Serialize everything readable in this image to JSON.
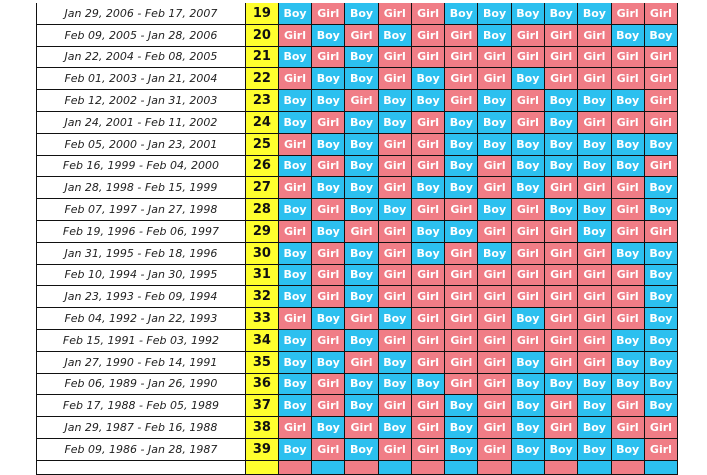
{
  "colors": {
    "boy": "#2cc0ef",
    "girl": "#f07d86",
    "age": "#ffff2e"
  },
  "rows": [
    {
      "date": "Jan 29, 2006 - Feb 17, 2007",
      "age": "19",
      "g": [
        "Boy",
        "Girl",
        "Boy",
        "Girl",
        "Girl",
        "Boy",
        "Boy",
        "Boy",
        "Boy",
        "Boy",
        "Girl",
        "Girl"
      ]
    },
    {
      "date": "Feb 09, 2005 - Jan 28, 2006",
      "age": "20",
      "g": [
        "Girl",
        "Boy",
        "Girl",
        "Boy",
        "Girl",
        "Girl",
        "Boy",
        "Girl",
        "Girl",
        "Girl",
        "Boy",
        "Boy"
      ]
    },
    {
      "date": "Jan 22, 2004 - Feb 08, 2005",
      "age": "21",
      "g": [
        "Boy",
        "Girl",
        "Boy",
        "Girl",
        "Girl",
        "Girl",
        "Girl",
        "Girl",
        "Girl",
        "Girl",
        "Girl",
        "Girl"
      ]
    },
    {
      "date": "Feb 01, 2003 - Jan 21, 2004",
      "age": "22",
      "g": [
        "Girl",
        "Boy",
        "Boy",
        "Girl",
        "Boy",
        "Girl",
        "Girl",
        "Boy",
        "Girl",
        "Girl",
        "Girl",
        "Girl"
      ]
    },
    {
      "date": "Feb 12, 2002 - Jan 31, 2003",
      "age": "23",
      "g": [
        "Boy",
        "Boy",
        "Girl",
        "Boy",
        "Boy",
        "Girl",
        "Boy",
        "Girl",
        "Boy",
        "Boy",
        "Boy",
        "Girl"
      ]
    },
    {
      "date": "Jan 24, 2001 - Feb 11, 2002",
      "age": "24",
      "g": [
        "Boy",
        "Girl",
        "Boy",
        "Boy",
        "Girl",
        "Boy",
        "Boy",
        "Girl",
        "Boy",
        "Girl",
        "Girl",
        "Girl"
      ]
    },
    {
      "date": "Feb 05, 2000 - Jan 23, 2001",
      "age": "25",
      "g": [
        "Girl",
        "Boy",
        "Boy",
        "Girl",
        "Girl",
        "Boy",
        "Boy",
        "Boy",
        "Boy",
        "Boy",
        "Boy",
        "Boy"
      ]
    },
    {
      "date": "Feb 16, 1999 - Feb 04, 2000",
      "age": "26",
      "g": [
        "Boy",
        "Girl",
        "Boy",
        "Girl",
        "Girl",
        "Boy",
        "Girl",
        "Boy",
        "Boy",
        "Boy",
        "Boy",
        "Girl"
      ]
    },
    {
      "date": "Jan 28, 1998 - Feb 15, 1999",
      "age": "27",
      "g": [
        "Girl",
        "Boy",
        "Boy",
        "Girl",
        "Boy",
        "Boy",
        "Girl",
        "Boy",
        "Girl",
        "Girl",
        "Girl",
        "Boy"
      ]
    },
    {
      "date": "Feb 07, 1997 - Jan 27, 1998",
      "age": "28",
      "g": [
        "Boy",
        "Girl",
        "Boy",
        "Boy",
        "Girl",
        "Girl",
        "Boy",
        "Girl",
        "Boy",
        "Boy",
        "Girl",
        "Boy"
      ]
    },
    {
      "date": "Feb 19, 1996 - Feb 06, 1997",
      "age": "29",
      "g": [
        "Girl",
        "Boy",
        "Girl",
        "Girl",
        "Boy",
        "Boy",
        "Girl",
        "Girl",
        "Girl",
        "Boy",
        "Girl",
        "Girl"
      ]
    },
    {
      "date": "Jan 31, 1995 - Feb 18, 1996",
      "age": "30",
      "g": [
        "Boy",
        "Girl",
        "Boy",
        "Girl",
        "Boy",
        "Girl",
        "Boy",
        "Girl",
        "Girl",
        "Girl",
        "Boy",
        "Boy"
      ]
    },
    {
      "date": "Feb 10, 1994 - Jan 30, 1995",
      "age": "31",
      "g": [
        "Boy",
        "Girl",
        "Boy",
        "Girl",
        "Girl",
        "Girl",
        "Girl",
        "Girl",
        "Girl",
        "Girl",
        "Girl",
        "Boy"
      ]
    },
    {
      "date": "Jan 23, 1993 - Feb 09, 1994",
      "age": "32",
      "g": [
        "Boy",
        "Girl",
        "Boy",
        "Girl",
        "Girl",
        "Girl",
        "Girl",
        "Girl",
        "Girl",
        "Girl",
        "Girl",
        "Boy"
      ]
    },
    {
      "date": "Feb 04, 1992 - Jan 22, 1993",
      "age": "33",
      "g": [
        "Girl",
        "Boy",
        "Girl",
        "Boy",
        "Girl",
        "Girl",
        "Girl",
        "Boy",
        "Girl",
        "Girl",
        "Girl",
        "Boy"
      ]
    },
    {
      "date": "Feb 15, 1991 - Feb 03, 1992",
      "age": "34",
      "g": [
        "Boy",
        "Girl",
        "Boy",
        "Girl",
        "Girl",
        "Girl",
        "Girl",
        "Girl",
        "Girl",
        "Girl",
        "Boy",
        "Boy"
      ]
    },
    {
      "date": "Jan 27, 1990 - Feb 14, 1991",
      "age": "35",
      "g": [
        "Boy",
        "Boy",
        "Girl",
        "Boy",
        "Girl",
        "Girl",
        "Girl",
        "Boy",
        "Girl",
        "Girl",
        "Boy",
        "Boy"
      ]
    },
    {
      "date": "Feb 06, 1989 - Jan 26, 1990",
      "age": "36",
      "g": [
        "Boy",
        "Girl",
        "Boy",
        "Boy",
        "Boy",
        "Girl",
        "Girl",
        "Boy",
        "Boy",
        "Boy",
        "Boy",
        "Boy"
      ]
    },
    {
      "date": "Feb 17, 1988 - Feb 05, 1989",
      "age": "37",
      "g": [
        "Boy",
        "Girl",
        "Boy",
        "Girl",
        "Girl",
        "Boy",
        "Girl",
        "Boy",
        "Girl",
        "Boy",
        "Girl",
        "Boy"
      ]
    },
    {
      "date": "Jan 29, 1987 - Feb 16, 1988",
      "age": "38",
      "g": [
        "Girl",
        "Boy",
        "Girl",
        "Boy",
        "Girl",
        "Boy",
        "Girl",
        "Boy",
        "Girl",
        "Boy",
        "Girl",
        "Girl"
      ]
    },
    {
      "date": "Feb 09, 1986 - Jan 28, 1987",
      "age": "39",
      "g": [
        "Boy",
        "Girl",
        "Boy",
        "Girl",
        "Girl",
        "Boy",
        "Girl",
        "Boy",
        "Boy",
        "Boy",
        "Boy",
        "Girl"
      ]
    }
  ]
}
